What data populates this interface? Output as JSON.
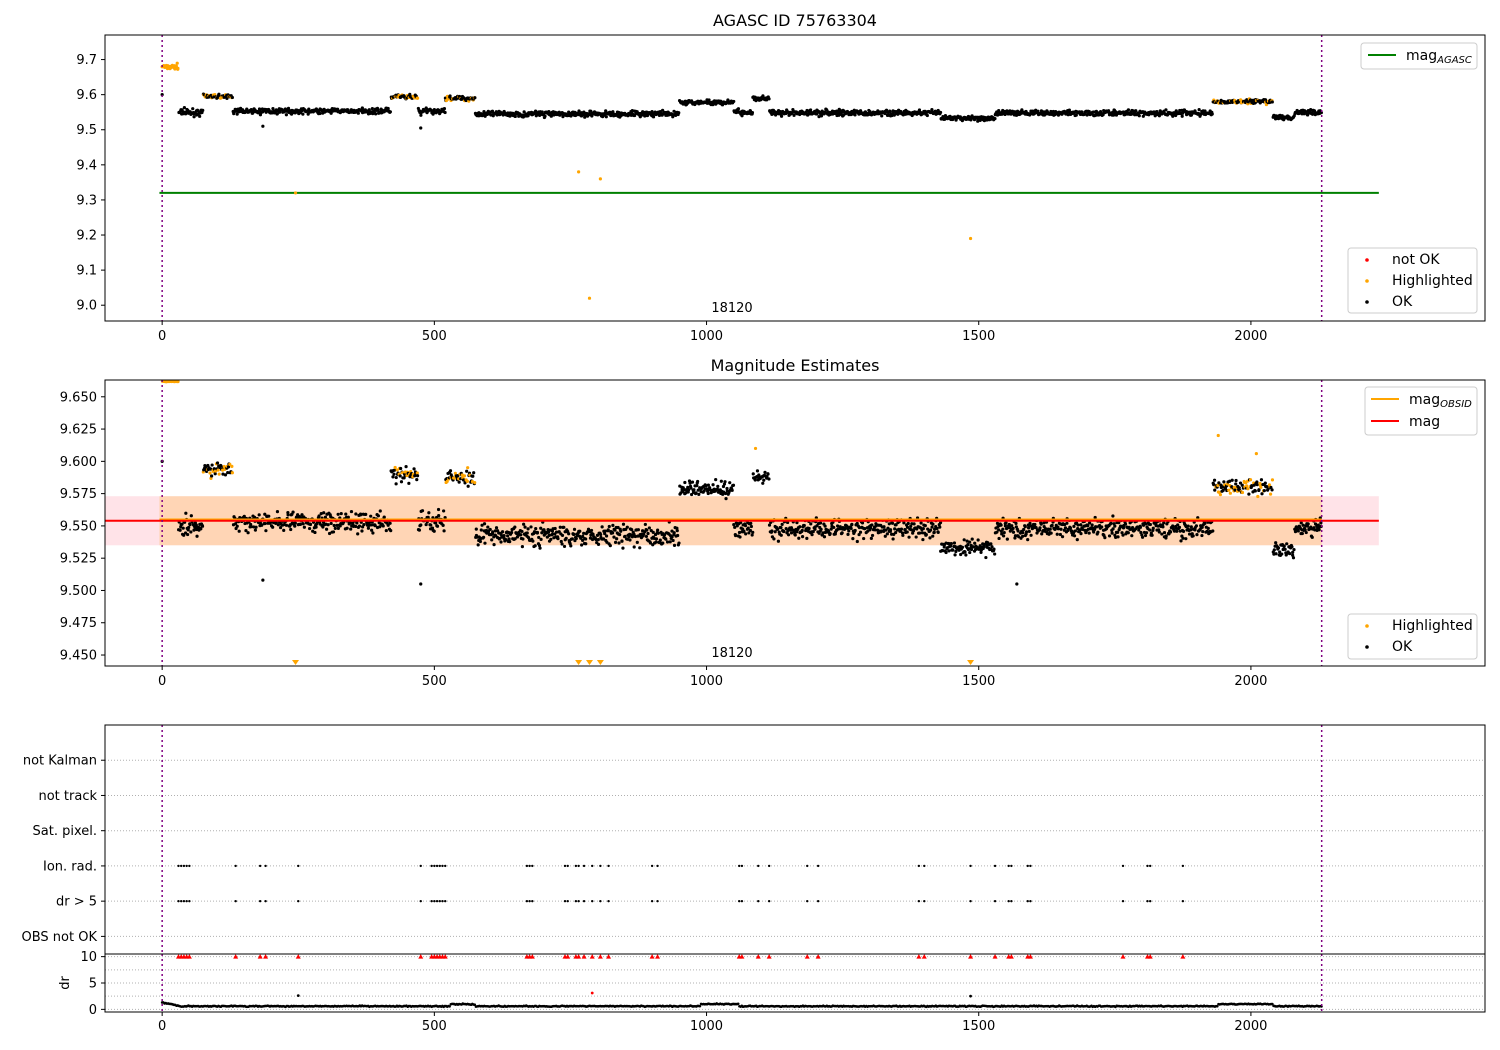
{
  "chart_data": [
    {
      "type": "scatter",
      "title": "AGASC ID 75763304",
      "xlim": [
        -105,
        2430
      ],
      "ylim": [
        8.955,
        9.77
      ],
      "x_ticks": [
        0,
        500,
        1000,
        1500,
        2000
      ],
      "y_ticks": [
        9.0,
        9.1,
        9.2,
        9.3,
        9.4,
        9.5,
        9.6,
        9.7
      ],
      "obsid_label": "18120",
      "obsid_label_x": 1000,
      "obs_boundaries": [
        0,
        2130
      ],
      "reference_line": {
        "name": "mag_AGASC",
        "value": 9.32,
        "x_range": [
          -5,
          2235
        ],
        "color": "#008000"
      },
      "legend_lines": [
        {
          "label": "mag",
          "sub": "AGASC",
          "color": "#008000"
        }
      ],
      "legend_points": [
        {
          "label": "not OK",
          "color": "#ff0000"
        },
        {
          "label": "Highlighted",
          "color": "#ffa500"
        },
        {
          "label": "OK",
          "color": "#000000"
        }
      ],
      "colors": {
        "ok": "#000000",
        "highlighted": "#ffa500",
        "not_ok": "#ff0000",
        "boundary": "#800080"
      },
      "segments": [
        {
          "x": [
            0,
            30
          ],
          "y": 9.68,
          "jitter": 0.012,
          "cls": "highlighted"
        },
        {
          "x": [
            30,
            75
          ],
          "y": 9.55,
          "jitter": 0.015,
          "cls": "ok"
        },
        {
          "x": [
            75,
            130
          ],
          "y": 9.595,
          "jitter": 0.008,
          "cls": "mixed"
        },
        {
          "x": [
            130,
            420
          ],
          "y": 9.553,
          "jitter": 0.012,
          "cls": "ok"
        },
        {
          "x": [
            420,
            470
          ],
          "y": 9.593,
          "jitter": 0.01,
          "cls": "mixed"
        },
        {
          "x": [
            470,
            520
          ],
          "y": 9.553,
          "jitter": 0.014,
          "cls": "ok"
        },
        {
          "x": [
            520,
            575
          ],
          "y": 9.59,
          "jitter": 0.01,
          "cls": "mixed"
        },
        {
          "x": [
            575,
            950
          ],
          "y": 9.545,
          "jitter": 0.012,
          "cls": "ok"
        },
        {
          "x": [
            950,
            1050
          ],
          "y": 9.578,
          "jitter": 0.01,
          "cls": "ok"
        },
        {
          "x": [
            1050,
            1085
          ],
          "y": 9.55,
          "jitter": 0.012,
          "cls": "ok"
        },
        {
          "x": [
            1085,
            1115
          ],
          "y": 9.59,
          "jitter": 0.01,
          "cls": "ok"
        },
        {
          "x": [
            1115,
            1430
          ],
          "y": 9.548,
          "jitter": 0.012,
          "cls": "ok"
        },
        {
          "x": [
            1430,
            1530
          ],
          "y": 9.533,
          "jitter": 0.01,
          "cls": "ok"
        },
        {
          "x": [
            1530,
            1930
          ],
          "y": 9.548,
          "jitter": 0.012,
          "cls": "ok"
        },
        {
          "x": [
            1930,
            2040
          ],
          "y": 9.58,
          "jitter": 0.01,
          "cls": "mixed"
        },
        {
          "x": [
            2040,
            2080
          ],
          "y": 9.535,
          "jitter": 0.01,
          "cls": "ok"
        },
        {
          "x": [
            2080,
            2130
          ],
          "y": 9.55,
          "jitter": 0.01,
          "cls": "ok"
        }
      ],
      "extra_points": [
        {
          "x": 245,
          "y": 9.32,
          "cls": "highlighted"
        },
        {
          "x": 765,
          "y": 9.38,
          "cls": "highlighted"
        },
        {
          "x": 805,
          "y": 9.36,
          "cls": "highlighted"
        },
        {
          "x": 785,
          "y": 9.02,
          "cls": "highlighted"
        },
        {
          "x": 1485,
          "y": 9.19,
          "cls": "highlighted"
        },
        {
          "x": 185,
          "y": 9.51,
          "cls": "ok"
        },
        {
          "x": 475,
          "y": 9.505,
          "cls": "ok"
        },
        {
          "x": 0,
          "y": 9.6,
          "cls": "ok"
        }
      ]
    },
    {
      "type": "scatter",
      "title": "Magnitude Estimates",
      "xlim": [
        -105,
        2430
      ],
      "ylim": [
        9.4415,
        9.663
      ],
      "x_ticks": [
        0,
        500,
        1000,
        1500,
        2000
      ],
      "y_ticks": [
        9.45,
        9.475,
        9.5,
        9.525,
        9.55,
        9.575,
        9.6,
        9.625,
        9.65
      ],
      "y_tick_labels": [
        "9.450",
        "9.475",
        "9.500",
        "9.525",
        "9.550",
        "9.575",
        "9.600",
        "9.625",
        "9.650"
      ],
      "obsid_label": "18120",
      "obsid_label_x": 1000,
      "obs_boundaries": [
        0,
        2130
      ],
      "mean_line": {
        "name": "mag",
        "value": 9.554,
        "x_range": [
          -105,
          2235
        ],
        "color": "#ff0000"
      },
      "obs_line": {
        "name": "mag_OBSID",
        "value": 9.555,
        "x_range": [
          -5,
          2130
        ],
        "color": "#ffa500"
      },
      "band_outer": {
        "lo": 9.535,
        "hi": 9.573,
        "x_range": [
          -105,
          2235
        ],
        "color": "#ffc0cb"
      },
      "band_inner": {
        "lo": 9.535,
        "hi": 9.573,
        "x_range": [
          -5,
          2130
        ],
        "color": "#ffa500"
      },
      "legend_lines": [
        {
          "label": "mag",
          "sub": "OBSID",
          "color": "#ffa500"
        },
        {
          "label": "mag",
          "sub": "",
          "color": "#ff0000"
        }
      ],
      "legend_points": [
        {
          "label": "Highlighted",
          "color": "#ffa500"
        },
        {
          "label": "OK",
          "color": "#000000"
        }
      ],
      "colors": {
        "ok": "#000000",
        "highlighted": "#ffa500",
        "boundary": "#800080"
      },
      "segments": [
        {
          "x": [
            0,
            30
          ],
          "y": 9.662,
          "jitter": 0.0005,
          "cls": "highlighted"
        },
        {
          "x": [
            30,
            75
          ],
          "y": 9.55,
          "jitter": 0.012,
          "cls": "ok"
        },
        {
          "x": [
            75,
            130
          ],
          "y": 9.594,
          "jitter": 0.008,
          "cls": "mixed"
        },
        {
          "x": [
            130,
            420
          ],
          "y": 9.553,
          "jitter": 0.011,
          "cls": "ok"
        },
        {
          "x": [
            420,
            470
          ],
          "y": 9.59,
          "jitter": 0.008,
          "cls": "mixed"
        },
        {
          "x": [
            470,
            520
          ],
          "y": 9.553,
          "jitter": 0.012,
          "cls": "ok"
        },
        {
          "x": [
            520,
            575
          ],
          "y": 9.588,
          "jitter": 0.009,
          "cls": "mixed"
        },
        {
          "x": [
            575,
            950
          ],
          "y": 9.543,
          "jitter": 0.012,
          "cls": "ok"
        },
        {
          "x": [
            950,
            1050
          ],
          "y": 9.578,
          "jitter": 0.009,
          "cls": "ok"
        },
        {
          "x": [
            1050,
            1085
          ],
          "y": 9.548,
          "jitter": 0.01,
          "cls": "ok"
        },
        {
          "x": [
            1085,
            1115
          ],
          "y": 9.588,
          "jitter": 0.009,
          "cls": "ok"
        },
        {
          "x": [
            1115,
            1430
          ],
          "y": 9.548,
          "jitter": 0.011,
          "cls": "ok"
        },
        {
          "x": [
            1430,
            1530
          ],
          "y": 9.533,
          "jitter": 0.009,
          "cls": "ok"
        },
        {
          "x": [
            1530,
            1930
          ],
          "y": 9.548,
          "jitter": 0.011,
          "cls": "ok"
        },
        {
          "x": [
            1930,
            2040
          ],
          "y": 9.58,
          "jitter": 0.008,
          "cls": "mixed"
        },
        {
          "x": [
            2040,
            2080
          ],
          "y": 9.532,
          "jitter": 0.009,
          "cls": "ok"
        },
        {
          "x": [
            2080,
            2130
          ],
          "y": 9.548,
          "jitter": 0.01,
          "cls": "ok"
        }
      ],
      "extra_points": [
        {
          "x": 185,
          "y": 9.508,
          "cls": "ok"
        },
        {
          "x": 475,
          "y": 9.505,
          "cls": "ok"
        },
        {
          "x": 1570,
          "y": 9.505,
          "cls": "ok"
        },
        {
          "x": 1090,
          "y": 9.61,
          "cls": "highlighted"
        },
        {
          "x": 1940,
          "y": 9.62,
          "cls": "highlighted"
        },
        {
          "x": 2010,
          "y": 9.606,
          "cls": "highlighted"
        },
        {
          "x": 0,
          "y": 9.6,
          "cls": "ok"
        }
      ],
      "below_markers": [
        245,
        765,
        785,
        805,
        1485
      ]
    },
    {
      "type": "scatter",
      "title": "",
      "xlim": [
        -105,
        2430
      ],
      "x_ticks": [
        0,
        500,
        1000,
        1500,
        2000
      ],
      "flag_rows": [
        "not Kalman",
        "not track",
        "Sat. pixel.",
        "Ion. rad.",
        "dr > 5",
        "OBS not OK"
      ],
      "flag_row_values": [
        6,
        5,
        4,
        3,
        2,
        1
      ],
      "flag_ylim": [
        0.5,
        7
      ],
      "flag_x": [
        30,
        35,
        40,
        45,
        50,
        135,
        180,
        190,
        250,
        475,
        495,
        500,
        505,
        510,
        515,
        520,
        670,
        675,
        680,
        740,
        745,
        760,
        765,
        775,
        790,
        805,
        820,
        900,
        910,
        1060,
        1065,
        1095,
        1115,
        1185,
        1205,
        1390,
        1400,
        1485,
        1530,
        1555,
        1560,
        1590,
        1595,
        1765,
        1810,
        1815,
        1875
      ],
      "flag_rows_active": [
        3,
        2
      ],
      "dr_ylim": [
        -0.5,
        10.5
      ],
      "dr_ticks": [
        0,
        5,
        10
      ],
      "dr_label": "dr",
      "dr_cap": 10,
      "dr_base": 0.6,
      "dr_outliers": [
        {
          "x": 250,
          "y": 2.6
        },
        {
          "x": 790,
          "y": 3.1
        },
        {
          "x": 1485,
          "y": 2.5
        }
      ],
      "colors": {
        "ok": "#000000",
        "not_ok": "#ff0000",
        "boundary": "#800080",
        "grid": "#b0b0b0"
      },
      "obs_boundaries": [
        0,
        2130
      ]
    }
  ]
}
